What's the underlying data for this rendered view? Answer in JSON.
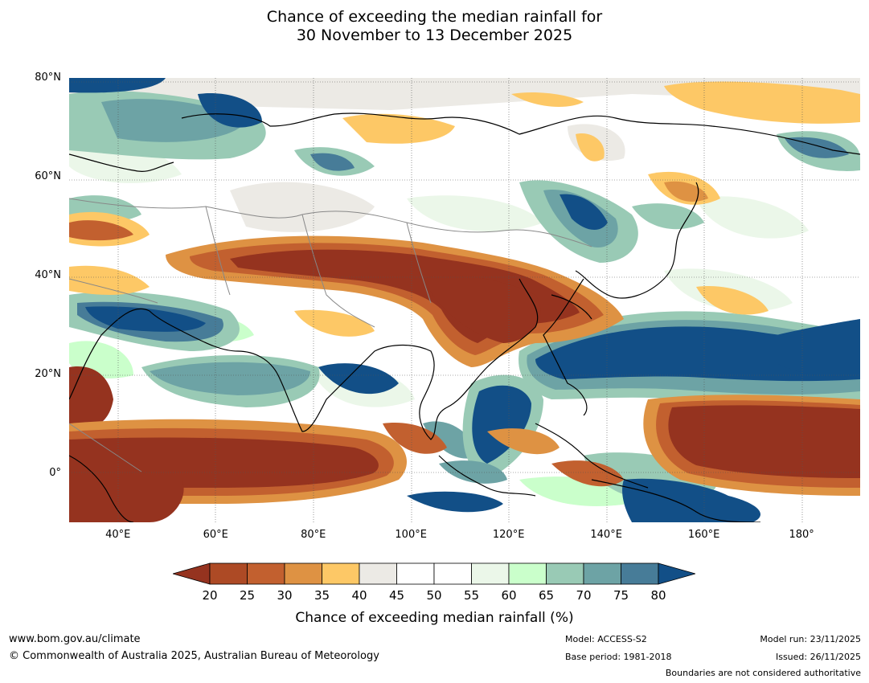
{
  "title": {
    "line1": "Chance of exceeding the median rainfall for",
    "line2": "30 November to 13 December 2025"
  },
  "map": {
    "lon_range": [
      30,
      192
    ],
    "lat_range": [
      -10,
      80
    ],
    "lat_ticks": [
      "80°N",
      "60°N",
      "40°N",
      "20°N",
      "0°"
    ],
    "lat_values": [
      80,
      60,
      40,
      20,
      0
    ],
    "lon_ticks": [
      "40°E",
      "60°E",
      "80°E",
      "100°E",
      "120°E",
      "140°E",
      "160°E",
      "180°"
    ],
    "lon_values": [
      40,
      60,
      80,
      100,
      120,
      140,
      160,
      180
    ],
    "grid": true
  },
  "colorbar": {
    "ticks": [
      "20",
      "25",
      "30",
      "35",
      "40",
      "45",
      "50",
      "55",
      "60",
      "65",
      "70",
      "75",
      "80"
    ],
    "colors": [
      "#ad4a25",
      "#c2602f",
      "#de9243",
      "#fdc866",
      "#eceae5",
      "#ffffff",
      "#ffffff",
      "#ebf7e9",
      "#caffcb",
      "#99cab5",
      "#6da3a5",
      "#477c98"
    ],
    "under_color": "#95331f",
    "over_color": "#124f87",
    "label": "Chance of exceeding median rainfall (%)"
  },
  "footer": {
    "website": "www.bom.gov.au/climate",
    "copyright": "© Commonwealth of Australia 2025, Australian Bureau of Meteorology",
    "model": "Model: ACCESS-S2",
    "base_period": "Base period: 1981-2018",
    "model_run": "Model run: 23/11/2025",
    "issued": "Issued: 26/11/2025",
    "disclaimer": "Boundaries are not considered authoritative"
  }
}
